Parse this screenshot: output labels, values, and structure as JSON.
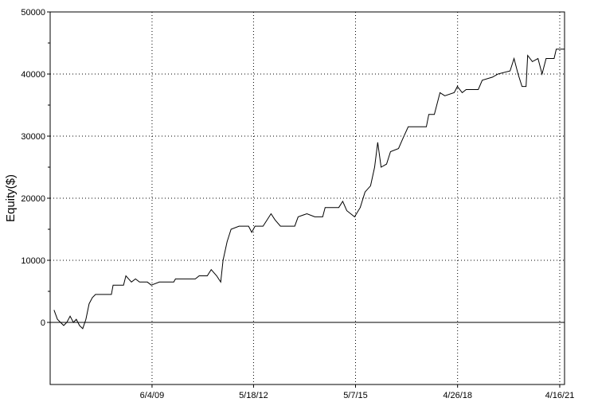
{
  "chart_data": {
    "type": "line",
    "y_label": "Equity($)",
    "xlim": [
      "2006-06-17",
      "2021-06-06"
    ],
    "xticks": [
      {
        "value": "2009-06-04",
        "label": "6/4/09"
      },
      {
        "value": "2012-05-18",
        "label": "5/18/12"
      },
      {
        "value": "2015-05-07",
        "label": "5/7/15"
      },
      {
        "value": "2018-04-26",
        "label": "4/26/18"
      },
      {
        "value": "2021-04-16",
        "label": "4/16/21"
      }
    ],
    "ylim": [
      -10000,
      50000
    ],
    "yticks": [
      0,
      10000,
      20000,
      30000,
      40000,
      50000
    ],
    "grid": true,
    "x": [
      "2006-07-28",
      "2006-09-02",
      "2006-10-05",
      "2006-11-08",
      "2006-12-11",
      "2007-01-15",
      "2007-02-19",
      "2007-03-22",
      "2007-04-25",
      "2007-05-29",
      "2007-07-02",
      "2007-08-05",
      "2007-09-09",
      "2007-10-12",
      "2008-03-29",
      "2008-04-16",
      "2008-08-05",
      "2008-08-30",
      "2008-10-28",
      "2008-12-10",
      "2009-01-22",
      "2009-04-15",
      "2009-05-27",
      "2009-08-21",
      "2010-01-21",
      "2010-02-08",
      "2010-09-07",
      "2010-10-18",
      "2011-01-12",
      "2011-02-23",
      "2011-04-22",
      "2011-06-04",
      "2011-06-29",
      "2011-08-11",
      "2011-09-22",
      "2011-12-16",
      "2012-03-26",
      "2012-04-29",
      "2012-06-03",
      "2012-08-27",
      "2012-11-20",
      "2013-01-02",
      "2013-02-28",
      "2013-07-30",
      "2013-09-04",
      "2013-12-06",
      "2014-02-28",
      "2014-05-23",
      "2014-06-18",
      "2014-11-10",
      "2014-12-22",
      "2015-02-03",
      "2015-04-27",
      "2015-06-26",
      "2015-08-16",
      "2015-10-14",
      "2015-11-26",
      "2015-12-29",
      "2016-02-03",
      "2016-04-01",
      "2016-05-13",
      "2016-08-06",
      "2016-09-18",
      "2016-11-17",
      "2017-05-29",
      "2017-06-24",
      "2017-08-22",
      "2017-10-21",
      "2017-12-11",
      "2018-03-21",
      "2018-04-24",
      "2018-06-14",
      "2018-07-26",
      "2018-12-02",
      "2019-01-13",
      "2019-05-02",
      "2019-06-30",
      "2019-11-05",
      "2019-12-17",
      "2020-01-29",
      "2020-03-11",
      "2020-04-23",
      "2020-05-10",
      "2020-06-29",
      "2020-08-28",
      "2020-10-10",
      "2020-11-22",
      "2021-02-15",
      "2021-03-10",
      "2021-06-04"
    ],
    "series": [
      {
        "color": "#000000",
        "values": [
          2000,
          500,
          0,
          -500,
          0,
          1000,
          0,
          500,
          -500,
          -1000,
          500,
          3000,
          4000,
          4500,
          4500,
          6000,
          6000,
          7500,
          6500,
          7000,
          6500,
          6500,
          6000,
          6500,
          6500,
          7000,
          7000,
          7500,
          7500,
          8500,
          7500,
          6500,
          10000,
          13000,
          15000,
          15500,
          15500,
          14500,
          15500,
          15500,
          17500,
          16500,
          15500,
          15500,
          17000,
          17500,
          17000,
          17000,
          18500,
          18500,
          19500,
          18000,
          17000,
          18500,
          21000,
          22000,
          25000,
          29000,
          25000,
          25500,
          27500,
          28000,
          29500,
          31500,
          31500,
          33500,
          33500,
          37000,
          36500,
          37000,
          38000,
          37000,
          37500,
          37500,
          39000,
          39500,
          40000,
          40500,
          42500,
          40000,
          38000,
          38000,
          43000,
          42000,
          42500,
          40000,
          42500,
          42500,
          44000,
          44000
        ]
      }
    ]
  }
}
